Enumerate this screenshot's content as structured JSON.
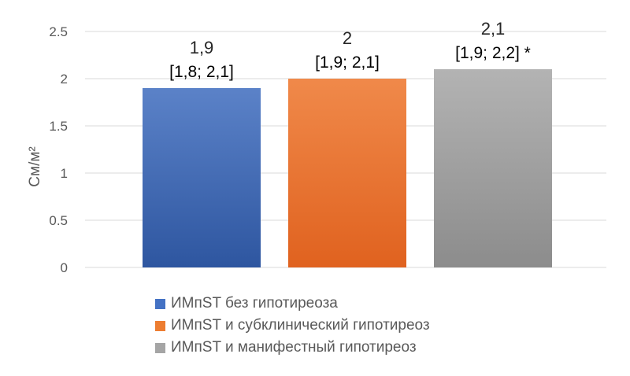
{
  "chart_data": {
    "type": "bar",
    "ylabel": "См/м²",
    "ylim": [
      0,
      2.5
    ],
    "yticks": [
      "0",
      "0.5",
      "1",
      "1.5",
      "2",
      "2.5"
    ],
    "grid": true,
    "legend_position": "bottom",
    "series": [
      {
        "name": "ИМпST без гипотиреоза",
        "value": 1.9,
        "label": "1,9",
        "ci": "[1,8; 2,1]",
        "color": "#4472c4"
      },
      {
        "name": "ИМпST и субклинический гипотиреоз",
        "value": 2.0,
        "label": "2",
        "ci": "[1,9; 2,1]",
        "color": "#ed7d31"
      },
      {
        "name": "ИМпST и манифестный гипотиреоз",
        "value": 2.1,
        "label": "2,1",
        "ci": "[1,9; 2,2] *",
        "color": "#a5a5a5"
      }
    ]
  }
}
